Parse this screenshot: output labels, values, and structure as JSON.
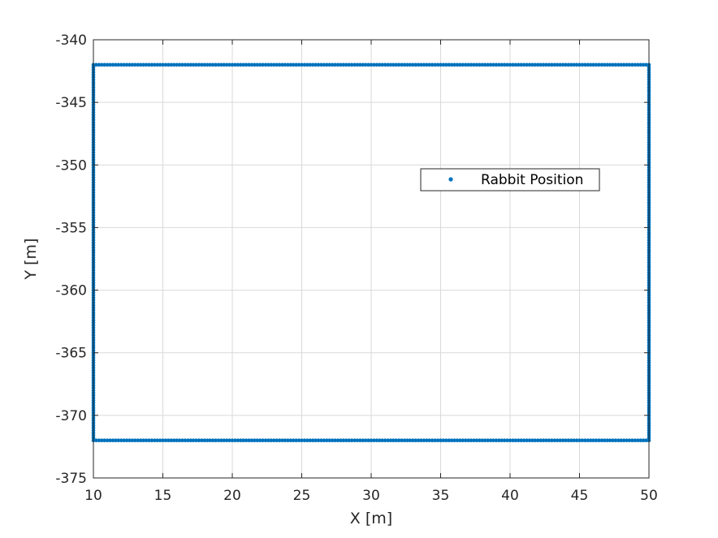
{
  "chart_data": {
    "type": "scatter",
    "title": "",
    "xlabel": "X [m]",
    "ylabel": "Y [m]",
    "xlim": [
      10,
      50
    ],
    "ylim": [
      -375,
      -340
    ],
    "xticks": [
      10,
      15,
      20,
      25,
      30,
      35,
      40,
      45,
      50
    ],
    "yticks": [
      -340,
      -345,
      -350,
      -355,
      -360,
      -365,
      -370,
      -375
    ],
    "xtick_labels": [
      "10",
      "15",
      "20",
      "25",
      "30",
      "35",
      "40",
      "45",
      "50"
    ],
    "ytick_labels": [
      "-340",
      "-345",
      "-350",
      "-355",
      "-360",
      "-365",
      "-370",
      "-375"
    ],
    "grid": true,
    "legend_position": "upper-right",
    "series": [
      {
        "name": "Rabbit Position",
        "color": "#0072BD",
        "marker": "dot",
        "shape": "rectangle-outline",
        "corners": [
          [
            10,
            -342
          ],
          [
            50,
            -342
          ],
          [
            50,
            -372
          ],
          [
            10,
            -372
          ]
        ],
        "spacing": 0.2
      }
    ]
  }
}
